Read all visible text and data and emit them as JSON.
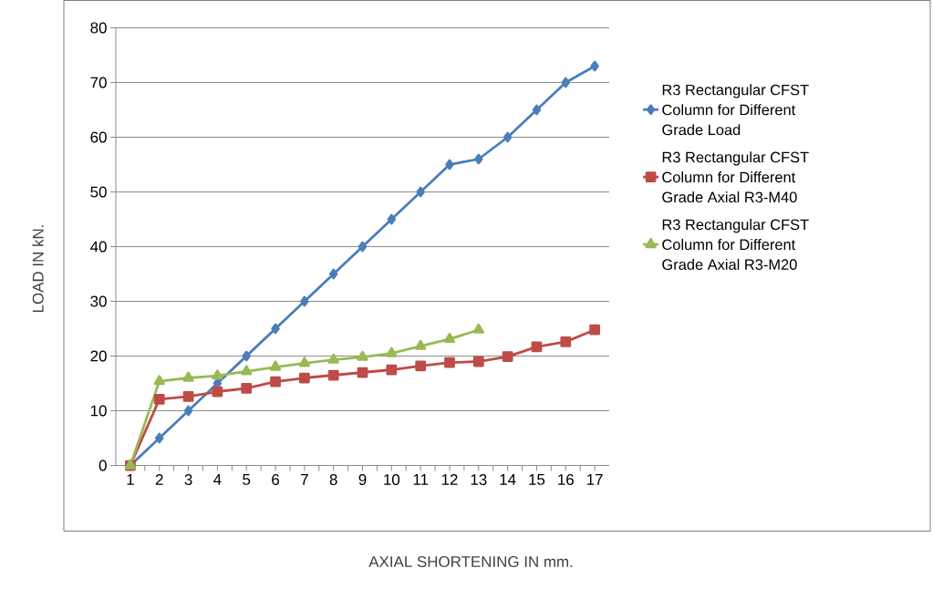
{
  "chart_data": {
    "type": "line",
    "xlabel": "AXIAL SHORTENING IN mm.",
    "ylabel": "LOAD IN kN.",
    "categories": [
      "1",
      "2",
      "3",
      "4",
      "5",
      "6",
      "7",
      "8",
      "9",
      "10",
      "11",
      "12",
      "13",
      "14",
      "15",
      "16",
      "17"
    ],
    "series": [
      {
        "name": "R3 Rectangular CFST Column for Different Grade Load",
        "color": "#4a7ebb",
        "marker": "diamond",
        "values": [
          0,
          5,
          10,
          15,
          20,
          25,
          30,
          35,
          40,
          45,
          50,
          55,
          56,
          60,
          65,
          70,
          73
        ]
      },
      {
        "name": "R3 Rectangular CFST Column for Different Grade Axial R3-M40",
        "color": "#be4b48",
        "marker": "square",
        "values": [
          0,
          12.1,
          12.6,
          13.5,
          14.1,
          15.3,
          16.0,
          16.5,
          17.0,
          17.5,
          18.2,
          18.8,
          19.0,
          19.9,
          21.7,
          22.6,
          24.8
        ]
      },
      {
        "name": "R3 Rectangular CFST Column for Different Grade Axial R3-M20",
        "color": "#98b954",
        "marker": "triangle",
        "values": [
          0,
          15.4,
          16.0,
          16.4,
          17.2,
          18.0,
          18.7,
          19.3,
          19.8,
          20.5,
          21.8,
          23.1,
          24.8,
          null,
          null,
          null,
          null
        ]
      }
    ],
    "ylim": [
      0,
      80
    ],
    "yticks": [
      0,
      10,
      20,
      30,
      40,
      50,
      60,
      70,
      80
    ],
    "grid": "y",
    "legend": "right",
    "line_style": "solid"
  }
}
